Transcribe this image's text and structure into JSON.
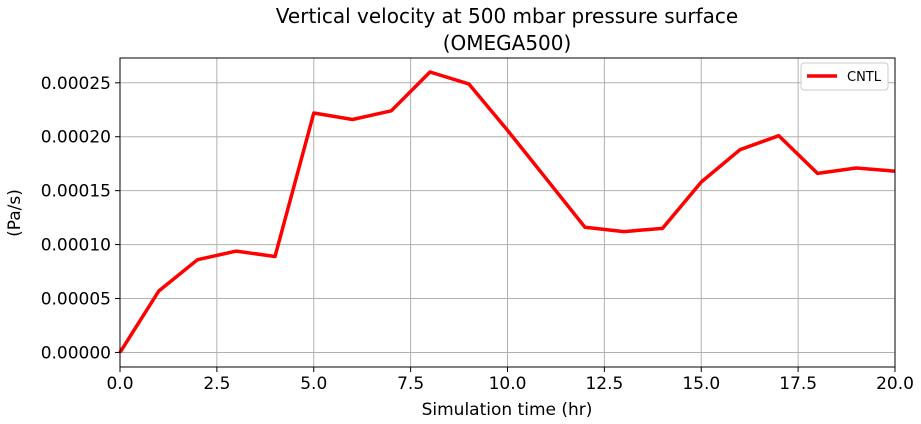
{
  "chart_data": {
    "type": "line",
    "title": "Vertical velocity at 500 mbar pressure surface",
    "subtitle": "(OMEGA500)",
    "xlabel": "Simulation time (hr)",
    "ylabel": "(Pa/s)",
    "xlim": [
      0,
      20
    ],
    "ylim": [
      -1.35e-05,
      0.000273
    ],
    "xticks": [
      0,
      2.5,
      5,
      7.5,
      10,
      12.5,
      15,
      17.5,
      20
    ],
    "xtick_labels": [
      "0.0",
      "2.5",
      "5.0",
      "7.5",
      "10.0",
      "12.5",
      "15.0",
      "17.5",
      "20.0"
    ],
    "yticks": [
      0,
      5e-05,
      0.0001,
      0.00015,
      0.0002,
      0.00025
    ],
    "ytick_labels": [
      "0.00000",
      "0.00005",
      "0.00010",
      "0.00015",
      "0.00020",
      "0.00025"
    ],
    "grid": true,
    "legend_position": "top-right",
    "series": [
      {
        "name": "CNTL",
        "color": "#ff0000",
        "x": [
          0,
          1,
          2,
          3,
          4,
          5,
          6,
          7,
          8,
          9,
          10,
          11,
          12,
          13,
          14,
          15,
          16,
          17,
          18,
          19,
          20
        ],
        "values": [
          0.0,
          5.7e-05,
          8.6e-05,
          9.4e-05,
          8.9e-05,
          0.000222,
          0.000216,
          0.000224,
          0.00026,
          0.000249,
          0.000206,
          0.000161,
          0.000116,
          0.000112,
          0.000115,
          0.000158,
          0.000188,
          0.000201,
          0.000166,
          0.000171,
          0.000168
        ]
      }
    ]
  }
}
